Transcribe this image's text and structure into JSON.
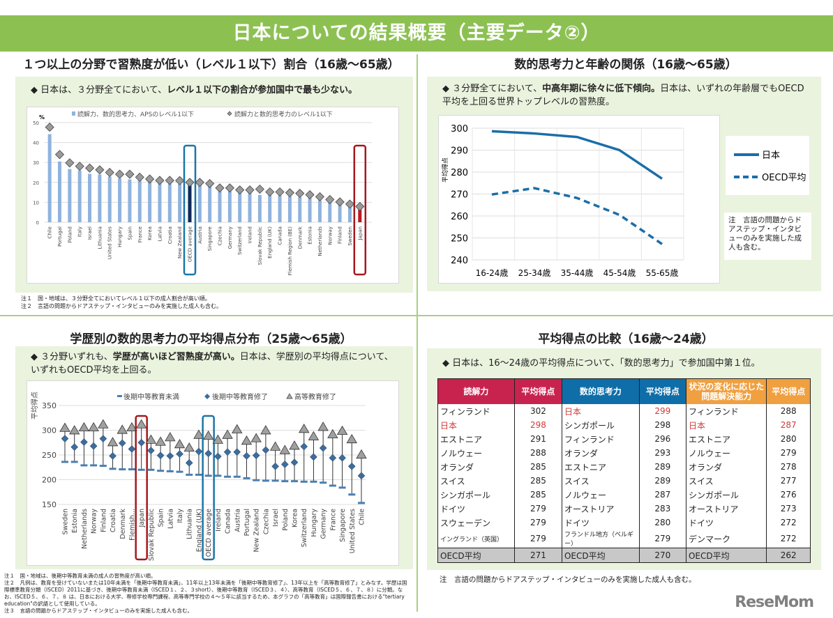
{
  "banner": "日本についての結果概要（主要データ②）",
  "q1": {
    "title": "１つ以上の分野で習熟度が低い（レベル１以下）割合（16歳～65歳）",
    "lead_pre": "◆ 日本は、３分野全てにおいて、",
    "lead_bold": "レベル１以下の割合が参加国中で最も少ない。",
    "notes": [
      "注１　国・地域は、３分野全てにおいてレベル１以下の成人割合が高い順。",
      "注２　言語の問題からドアステップ・インタビューのみを実施した成人も含む。"
    ]
  },
  "q2": {
    "title": "数的思考力と年齢の関係（16歳～65歳）",
    "lead_pre": "◆ ３分野全てにおいて、",
    "lead_bold": "中高年期に徐々に低下傾向。",
    "lead_post": "日本は、いずれの年齢層でもOECD平均を上回る世界トップレベルの習熟度。",
    "note": "注　言語の問題からドアステップ・インタビューのみを実施した成人も含む。"
  },
  "q3": {
    "title": "学歴別の数的思考力の平均得点分布（25歳～65歳）",
    "lead_pre": "◆ ３分野いずれも、",
    "lead_bold": "学歴が高いほど習熟度が高い。",
    "lead_post": "日本は、学歴別の平均得点について、いずれもOECD平均を上回る。",
    "notes": [
      "注１　国・地域は、後期中等教育未満の成人の習熟度が高い順。",
      "注２　凡例は、教育を受けていないまたは10年未満を「後期中等教育未満」、11年以上13年未満を「後期中等教育修了」、13年以上を「高等教育修了」とみなす。学歴は国際標準教育分類（ISCED）2011に基づき、後期中等教育未満（ISCED１、２、３short）、後期中等教育（ISCED３、４）、高等教育（ISCED５、６、７、８）に分類。なお、ISCED５、６、７、８ は、日本における大学、専修学校専門課程、高等専門学校の４～５年に該当するため、本グラフの「高等教育」は国際報告書における\"tertiary education\"の訳語として使用している。",
      "注３　言語の問題からドアステップ・インタビューのみを実施した成人も含む。"
    ]
  },
  "q4": {
    "title": "平均得点の比較（16歳～24歳）",
    "lead": "◆ 日本は、16～24歳の平均得点について、「数的思考力」で参加国中第１位。",
    "note": "注　言語の問題からドアステップ・インタビューのみを実施した成人も含む。",
    "headers": [
      "読解力",
      "平均得点",
      "数的思考力",
      "平均得点",
      "状況の変化に応じた問題解決能力",
      "平均得点"
    ],
    "header_colors": [
      "#c8234f",
      "#c8234f",
      "#0f6ea8",
      "#0f6ea8",
      "#f0a040",
      "#f0a040"
    ],
    "rows": [
      [
        "フィンランド",
        "302",
        "日本",
        "299",
        "フィンランド",
        "288"
      ],
      [
        "日本",
        "298",
        "シンガポール",
        "298",
        "日本",
        "287"
      ],
      [
        "エストニア",
        "291",
        "フィンランド",
        "296",
        "エストニア",
        "280"
      ],
      [
        "ノルウェー",
        "288",
        "オランダ",
        "293",
        "ノルウェー",
        "279"
      ],
      [
        "オランダ",
        "285",
        "エストニア",
        "289",
        "オランダ",
        "278"
      ],
      [
        "スイス",
        "285",
        "スイス",
        "289",
        "スイス",
        "277"
      ],
      [
        "シンガポール",
        "285",
        "ノルウェー",
        "287",
        "シンガポール",
        "276"
      ],
      [
        "ドイツ",
        "279",
        "オーストリア",
        "283",
        "オーストリア",
        "273"
      ],
      [
        "スウェーデン",
        "279",
        "ドイツ",
        "280",
        "ドイツ",
        "272"
      ],
      [
        "イングランド（英国）",
        "279",
        "フランドル地方（ベルギー）",
        "279",
        "デンマーク",
        "272"
      ]
    ],
    "oecd_row": [
      "OECD平均",
      "271",
      "OECD平均",
      "270",
      "OECD平均",
      "262"
    ],
    "highlight": "日本"
  },
  "logo": "ReseMom",
  "chart_data": [
    {
      "type": "bar",
      "ylabel": "%",
      "ylim": [
        0,
        50
      ],
      "yticks": [
        0,
        10,
        20,
        30,
        40,
        50
      ],
      "grid": true,
      "legend": "top",
      "categories": [
        "Chile",
        "Portugal",
        "Poland",
        "Italy",
        "Israel",
        "Lithuania",
        "United States",
        "Hungary",
        "Spain",
        "France",
        "Korea",
        "Latvia",
        "Croatia",
        "New Zealand",
        "OECD average",
        "Austria",
        "Singapore",
        "Czechia",
        "Germany",
        "Switzerland",
        "Ireland",
        "Slovak Republic",
        "England (UK)",
        "Canada",
        "Flemish Region (BE)",
        "Denmark",
        "Estonia",
        "Netherlands",
        "Norway",
        "Finland",
        "Sweden",
        "Japan"
      ],
      "series": [
        {
          "name": "読解力、数的思考力、APSのレベル1以下",
          "marker": "bar",
          "color": "#8fb3de",
          "values": [
            44.2,
            30.5,
            26.7,
            26,
            24.3,
            24,
            22.9,
            22,
            21.5,
            21.2,
            20.3,
            19.8,
            19.4,
            19.2,
            19,
            18.6,
            18,
            15.9,
            15.7,
            15.1,
            15,
            13.7,
            13.6,
            13.4,
            13,
            12.6,
            12.2,
            11,
            9.9,
            9.3,
            7.6,
            6.4
          ]
        },
        {
          "name": "読解力と数的思考力のレベル1以下",
          "marker": "diamond",
          "color": "#a0a0a0",
          "values": [
            47.7,
            34,
            29.8,
            28.1,
            27.2,
            26.3,
            25,
            24.1,
            24.1,
            22.6,
            21.7,
            21,
            21,
            20.9,
            20,
            20,
            19.4,
            17.2,
            17.2,
            16.2,
            16.2,
            16.6,
            15.2,
            15.2,
            14.8,
            14.5,
            13.8,
            12.8,
            11.4,
            10.2,
            9.1,
            7.9
          ]
        }
      ],
      "highlight_colors": {
        "OECD average": "#0d2a5c",
        "Japan": "#c0171f"
      },
      "highlight_boxes": {
        "OECD average": "#1a75a8",
        "Japan": "#a3181e"
      }
    },
    {
      "type": "line",
      "ylabel": "平均得点",
      "ylim": [
        240,
        300
      ],
      "yticks": [
        240,
        250,
        260,
        270,
        280,
        290,
        300
      ],
      "grid": true,
      "legend": "right",
      "categories": [
        "16-24歳",
        "25-34歳",
        "35-44歳",
        "45-54歳",
        "55-65歳"
      ],
      "series": [
        {
          "name": "日本",
          "style": "solid",
          "color": "#1a6ea8",
          "values": [
            298.6,
            297.6,
            296,
            290,
            277
          ]
        },
        {
          "name": "OECD平均",
          "style": "dashed",
          "color": "#1a6ea8",
          "values": [
            269.8,
            272.7,
            268.2,
            260.5,
            247.2
          ]
        }
      ]
    },
    {
      "type": "scatter",
      "ylabel": "平均得点",
      "ylim": [
        150,
        350
      ],
      "yticks": [
        150,
        200,
        250,
        300,
        350
      ],
      "grid": true,
      "legend": "top",
      "categories": [
        "Sweden",
        "Estonia",
        "Netherlands",
        "Norway",
        "Finland",
        "Croatia",
        "Denmark",
        "Flemish...",
        "Japan",
        "Slovak Republic",
        "Spain",
        "Latvia",
        "Italy",
        "Lithuania",
        "England (UK)",
        "OECD average",
        "Ireland",
        "Canada",
        "Austria",
        "Portugal",
        "New Zealand",
        "Czechia",
        "Israel",
        "Poland",
        "Korea",
        "Switzerland",
        "Hungary",
        "Germany",
        "France",
        "Singapore",
        "United States",
        "Chile"
      ],
      "series": [
        {
          "name": "後期中等教育未満",
          "marker": "dash",
          "color": "#4a7fb0",
          "values": [
            236,
            236,
            229,
            229,
            228,
            222,
            221,
            221,
            220,
            220,
            218,
            217,
            216,
            210,
            210,
            208,
            208,
            206,
            206,
            203,
            199,
            198,
            198,
            197,
            197,
            196,
            196,
            194,
            188,
            184,
            170,
            153
          ]
        },
        {
          "name": "後期中等教育修了",
          "marker": "diamond",
          "color": "#3a6e9e",
          "values": [
            283,
            266,
            276,
            268,
            283,
            248,
            274,
            262,
            275,
            259,
            249,
            248,
            252,
            234,
            257,
            253,
            247,
            256,
            256,
            248,
            249,
            260,
            227,
            231,
            235,
            267,
            246,
            264,
            244,
            244,
            227,
            208
          ]
        },
        {
          "name": "高等教育修了",
          "marker": "triangle",
          "color": "#a0a0a0",
          "values": [
            303,
            298,
            304,
            304,
            310,
            274,
            299,
            304,
            310,
            279,
            275,
            284,
            270,
            263,
            289,
            287,
            279,
            289,
            300,
            277,
            282,
            298,
            265,
            258,
            267,
            301,
            286,
            305,
            290,
            297,
            280,
            249
          ]
        }
      ],
      "highlight_boxes": {
        "Japan": "#a3181e",
        "OECD average": "#1a75a8"
      }
    }
  ]
}
